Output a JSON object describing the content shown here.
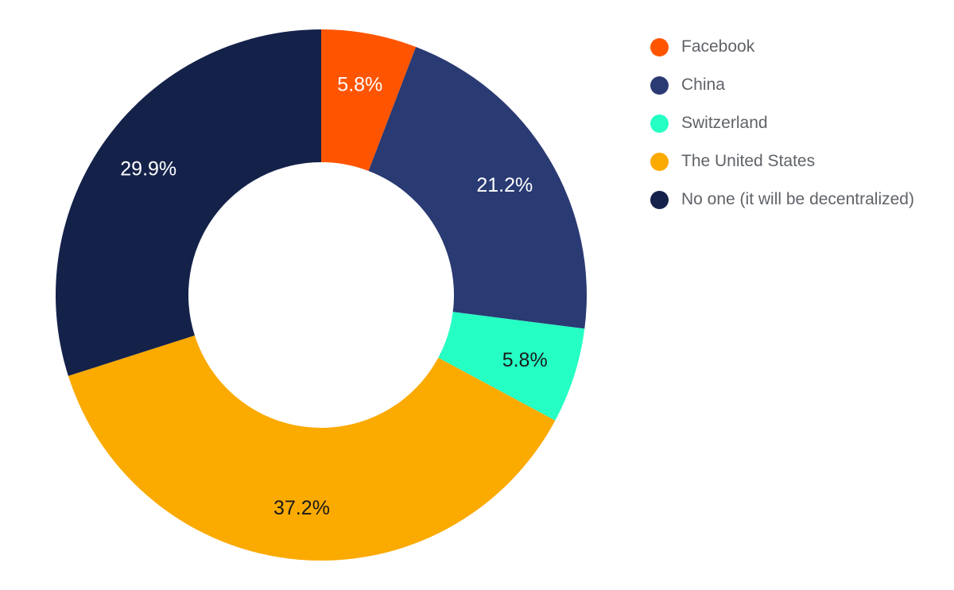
{
  "chart_data": {
    "type": "pie",
    "donut": true,
    "title": "",
    "legend_position": "top-right",
    "slices": [
      {
        "name": "Facebook",
        "value": 5.8,
        "label": "5.8%",
        "color": "#ff5500",
        "label_color": "#ffffff"
      },
      {
        "name": "China",
        "value": 21.2,
        "label": "21.2%",
        "color": "#2a3a73",
        "label_color": "#ffffff"
      },
      {
        "name": "Switzerland",
        "value": 5.8,
        "label": "5.8%",
        "color": "#26ffc4",
        "label_color": "#1a1a1a"
      },
      {
        "name": "The United States",
        "value": 37.2,
        "label": "37.2%",
        "color": "#fbaa00",
        "label_color": "#1a1a1a"
      },
      {
        "name": "No one (it will be decentralized)",
        "value": 29.9,
        "label": "29.9%",
        "color": "#14224a",
        "label_color": "#ffffff"
      }
    ]
  },
  "legend": {
    "items": [
      {
        "label": "Facebook",
        "color": "#ff5500"
      },
      {
        "label": "China",
        "color": "#2a3a73"
      },
      {
        "label": "Switzerland",
        "color": "#26ffc4"
      },
      {
        "label": "The United States",
        "color": "#fbaa00"
      },
      {
        "label": "No one (it will be decentralized)",
        "color": "#14224a"
      }
    ]
  }
}
